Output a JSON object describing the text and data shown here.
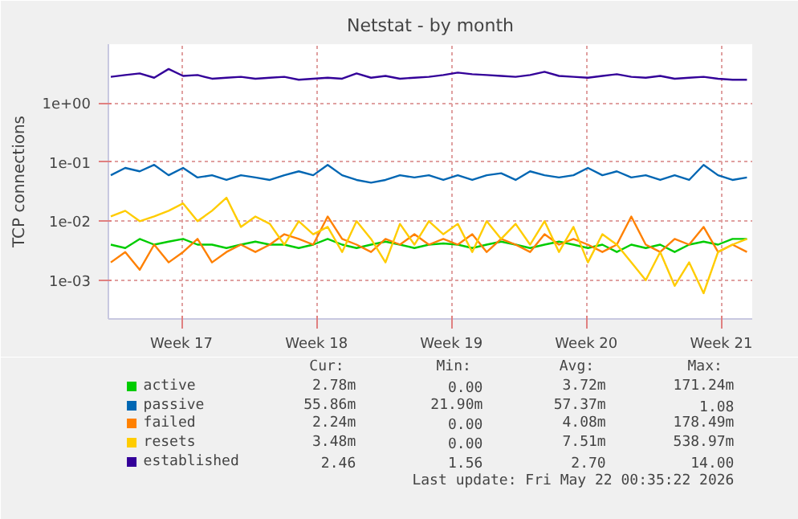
{
  "chart_data": {
    "type": "line",
    "title": "Netstat - by month",
    "ylabel": "TCP connections",
    "log": "y",
    "grid": true,
    "legend": "bottom",
    "xlim": [
      "2026-04-18T15:00",
      "2026-05-22T00:35"
    ],
    "xticks": [
      {
        "value": "2026-04-22T10:00",
        "label": "Week 17"
      },
      {
        "value": "2026-04-29T10:00",
        "label": "Week 18"
      },
      {
        "value": "2026-05-06T10:00",
        "label": "Week 19"
      },
      {
        "value": "2026-05-13T10:00",
        "label": "Week 20"
      },
      {
        "value": "2026-05-20T10:00",
        "label": "Week 21"
      }
    ],
    "ylim": [
      0.00022,
      10
    ],
    "yticks": [
      {
        "value": 0.001,
        "label": "1e-03"
      },
      {
        "value": 0.01,
        "label": "1e-02"
      },
      {
        "value": 0.1,
        "label": "1e-01"
      },
      {
        "value": 1,
        "label": "1e+00"
      }
    ],
    "x": [
      "2026-04-18T18:00",
      "2026-04-19T12:00",
      "2026-04-20T06:00",
      "2026-04-21T00:00",
      "2026-04-21T18:00",
      "2026-04-22T12:00",
      "2026-04-23T06:00",
      "2026-04-24T00:00",
      "2026-04-24T18:00",
      "2026-04-25T12:00",
      "2026-04-26T06:00",
      "2026-04-27T00:00",
      "2026-04-27T18:00",
      "2026-04-28T12:00",
      "2026-04-29T06:00",
      "2026-04-30T00:00",
      "2026-04-30T18:00",
      "2026-05-01T12:00",
      "2026-05-02T06:00",
      "2026-05-03T00:00",
      "2026-05-03T18:00",
      "2026-05-04T12:00",
      "2026-05-05T06:00",
      "2026-05-06T00:00",
      "2026-05-06T18:00",
      "2026-05-07T12:00",
      "2026-05-08T06:00",
      "2026-05-09T00:00",
      "2026-05-09T18:00",
      "2026-05-10T12:00",
      "2026-05-11T06:00",
      "2026-05-12T00:00",
      "2026-05-12T18:00",
      "2026-05-13T12:00",
      "2026-05-14T06:00",
      "2026-05-15T00:00",
      "2026-05-15T18:00",
      "2026-05-16T12:00",
      "2026-05-17T06:00",
      "2026-05-18T00:00",
      "2026-05-18T18:00",
      "2026-05-19T12:00",
      "2026-05-20T06:00",
      "2026-05-21T00:00",
      "2026-05-21T18:00"
    ],
    "series": [
      {
        "name": "active",
        "color": "#00cc00",
        "values": [
          0.004,
          0.0035,
          0.005,
          0.004,
          0.0045,
          0.005,
          0.004,
          0.004,
          0.0035,
          0.004,
          0.0045,
          0.004,
          0.004,
          0.0035,
          0.004,
          0.005,
          0.004,
          0.0035,
          0.004,
          0.0045,
          0.004,
          0.0035,
          0.004,
          0.0042,
          0.004,
          0.0035,
          0.004,
          0.0045,
          0.004,
          0.0035,
          0.004,
          0.0045,
          0.004,
          0.0035,
          0.004,
          0.003,
          0.004,
          0.0035,
          0.004,
          0.003,
          0.004,
          0.0045,
          0.004,
          0.005,
          0.005
        ]
      },
      {
        "name": "passive",
        "color": "#0066b3",
        "values": [
          0.06,
          0.08,
          0.07,
          0.09,
          0.06,
          0.08,
          0.055,
          0.06,
          0.05,
          0.06,
          0.055,
          0.05,
          0.06,
          0.07,
          0.06,
          0.09,
          0.06,
          0.05,
          0.045,
          0.05,
          0.06,
          0.055,
          0.06,
          0.05,
          0.06,
          0.05,
          0.06,
          0.065,
          0.05,
          0.07,
          0.06,
          0.055,
          0.06,
          0.08,
          0.06,
          0.07,
          0.055,
          0.06,
          0.05,
          0.06,
          0.05,
          0.09,
          0.06,
          0.05,
          0.055
        ]
      },
      {
        "name": "failed",
        "color": "#ff8000",
        "values": [
          0.002,
          0.003,
          0.0015,
          0.004,
          0.002,
          0.003,
          0.005,
          0.002,
          0.003,
          0.004,
          0.003,
          0.004,
          0.006,
          0.005,
          0.004,
          0.012,
          0.005,
          0.004,
          0.003,
          0.005,
          0.004,
          0.006,
          0.004,
          0.005,
          0.004,
          0.006,
          0.003,
          0.005,
          0.004,
          0.003,
          0.006,
          0.004,
          0.005,
          0.004,
          0.003,
          0.004,
          0.012,
          0.004,
          0.003,
          0.005,
          0.004,
          0.008,
          0.003,
          0.004,
          0.003
        ]
      },
      {
        "name": "resets",
        "color": "#ffcc00",
        "values": [
          0.012,
          0.015,
          0.01,
          0.012,
          0.015,
          0.02,
          0.01,
          0.015,
          0.025,
          0.008,
          0.012,
          0.009,
          0.004,
          0.01,
          0.006,
          0.008,
          0.003,
          0.01,
          0.005,
          0.002,
          0.009,
          0.004,
          0.01,
          0.006,
          0.009,
          0.003,
          0.01,
          0.005,
          0.009,
          0.004,
          0.01,
          0.003,
          0.008,
          0.002,
          0.006,
          0.004,
          0.002,
          0.001,
          0.003,
          0.0008,
          0.002,
          0.0006,
          0.003,
          0.004,
          0.005
        ]
      },
      {
        "name": "established",
        "color": "#330099",
        "values": [
          2.8,
          3.0,
          3.2,
          2.7,
          3.8,
          2.9,
          3.0,
          2.6,
          2.7,
          2.8,
          2.6,
          2.7,
          2.8,
          2.5,
          2.6,
          2.7,
          2.6,
          3.2,
          2.7,
          2.9,
          2.6,
          2.7,
          2.8,
          3.0,
          3.3,
          3.1,
          3.0,
          2.9,
          2.8,
          3.0,
          3.4,
          2.9,
          2.8,
          2.7,
          2.9,
          3.1,
          2.8,
          2.7,
          2.9,
          2.6,
          2.7,
          2.8,
          2.6,
          2.5,
          2.5
        ]
      }
    ],
    "annotations": [
      "Cur:",
      "Min:",
      "Avg:",
      "Max:",
      "2.78m",
      "0.00",
      "3.72m",
      "171.24m",
      "55.86m",
      "21.90m",
      "57.37m",
      "1.08",
      "2.24m",
      "0.00",
      "4.08m",
      "178.49m",
      "3.48m",
      "0.00",
      "7.51m",
      "538.97m",
      "2.46",
      "1.56",
      "2.70",
      "14.00",
      "Last update: Fri May 22 00:35:22 2026"
    ]
  }
}
